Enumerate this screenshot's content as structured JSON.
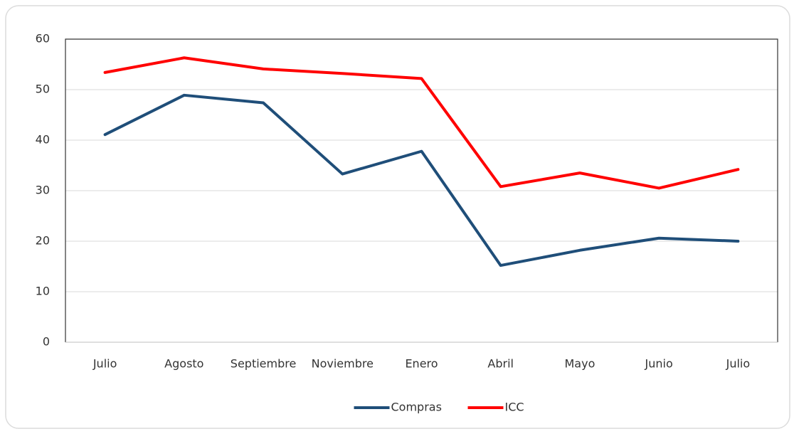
{
  "chart_data": {
    "type": "line",
    "categories": [
      "Julio",
      "Agosto",
      "Septiembre",
      "Noviembre",
      "Enero",
      "Abril",
      "Mayo",
      "Junio",
      "Julio"
    ],
    "series": [
      {
        "name": "Compras",
        "color": "#1f4e79",
        "values": [
          41.1,
          48.9,
          47.4,
          33.3,
          37.8,
          15.2,
          18.2,
          20.6,
          20.0
        ]
      },
      {
        "name": "ICC",
        "color": "#ff0000",
        "values": [
          53.4,
          56.3,
          54.1,
          53.2,
          52.2,
          30.8,
          33.5,
          30.5,
          34.2
        ]
      }
    ],
    "ylim": [
      0,
      60
    ],
    "yticks": [
      0,
      10,
      20,
      30,
      40,
      50,
      60
    ],
    "grid": true,
    "legend": "bottom"
  }
}
